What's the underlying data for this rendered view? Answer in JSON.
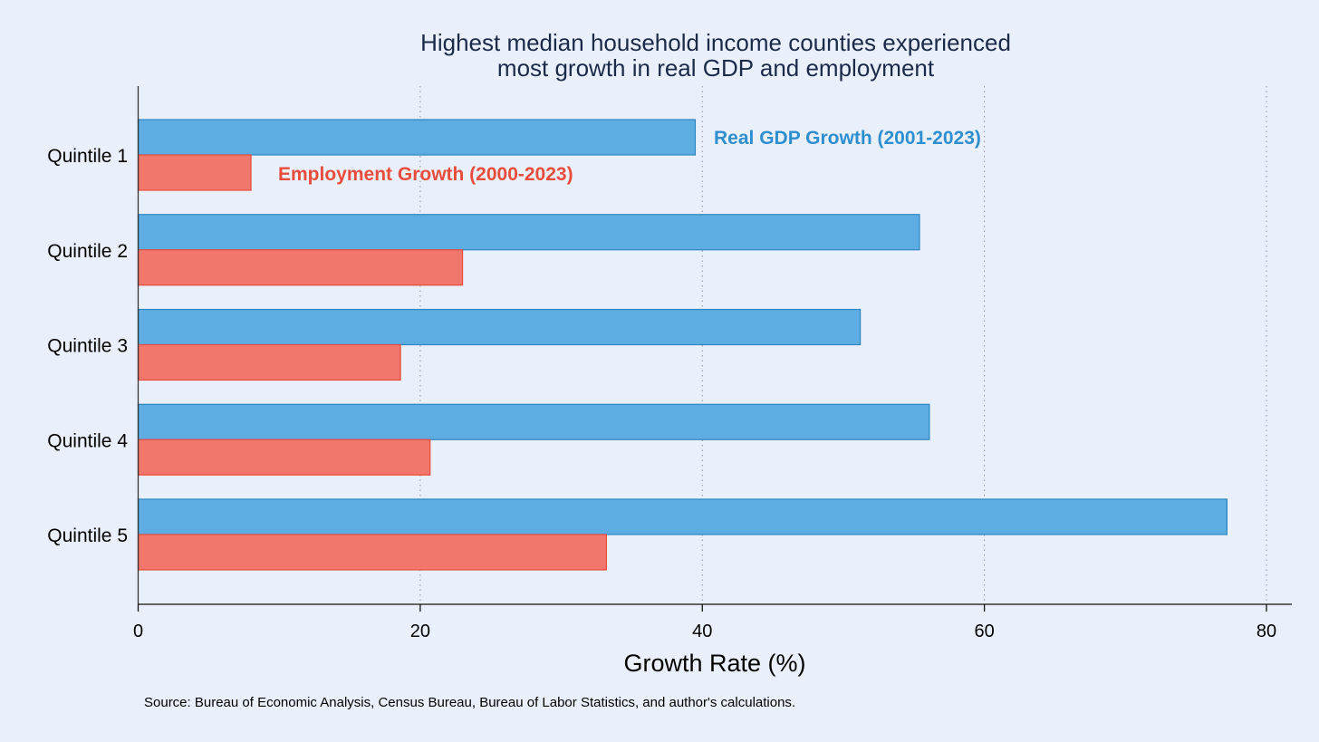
{
  "chart_data": {
    "type": "bar",
    "orientation": "horizontal",
    "title": [
      "Highest median household income counties experienced",
      "most growth in real GDP and employment"
    ],
    "categories": [
      "Quintile 1",
      "Quintile 2",
      "Quintile 3",
      "Quintile 4",
      "Quintile 5"
    ],
    "series": [
      {
        "name": "Real GDP Growth (2001-2023)",
        "color": "#5dade2",
        "stroke": "#2e86c1",
        "label_color": "#2e8fd0",
        "values": [
          39.5,
          55.4,
          51.2,
          56.1,
          77.2
        ]
      },
      {
        "name": "Employment Growth (2000-2023)",
        "color": "#f1776c",
        "stroke": "#e74c3c",
        "label_color": "#e74c3c",
        "values": [
          8.0,
          23.0,
          18.6,
          20.7,
          33.2
        ]
      }
    ],
    "xlabel": "Growth Rate (%)",
    "ylabel": "",
    "xlim": [
      0,
      82
    ],
    "xticks": [
      0,
      20,
      40,
      60,
      80
    ],
    "xtick_labels": [
      "0",
      "20",
      "40",
      "60",
      "80"
    ],
    "grid": "vertical dotted",
    "source": "Source: Bureau of Economic Analysis, Census Bureau, Bureau of Labor Statistics, and author's calculations."
  }
}
